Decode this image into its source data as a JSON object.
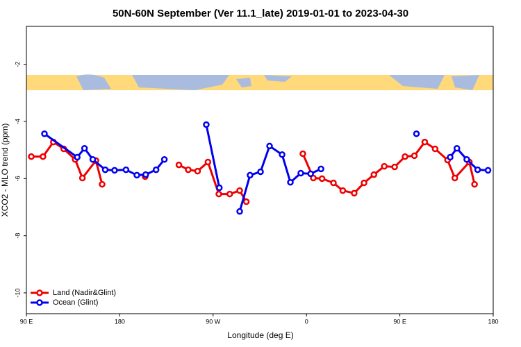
{
  "chart_data": {
    "type": "line",
    "title": "50N-60N September (Ver 11.1_late)   2019-01-01 to 2023-04-30",
    "x_label": "Longitude (deg E)",
    "y_label": "XCO2 - MLO trend (ppm)",
    "xlim": [
      90,
      540
    ],
    "ylim": [
      -10.73,
      -0.67
    ],
    "xticks": [
      {
        "value": 90,
        "label": "90 E"
      },
      {
        "value": 180,
        "label": "180"
      },
      {
        "value": 270,
        "label": "90 W"
      },
      {
        "value": 360,
        "label": "0"
      },
      {
        "value": 450,
        "label": "90 E"
      },
      {
        "value": 540,
        "label": "180"
      }
    ],
    "yticks": [
      -2,
      -4,
      -6,
      -8,
      -10
    ],
    "legend": "bottom-left",
    "series": [
      {
        "name": "Land (Nadir&Glint)",
        "color": "#ee0000",
        "x": [
          94.7,
          106,
          116,
          126,
          137,
          144,
          157,
          163,
          null,
          204.5,
          null,
          237,
          246,
          255,
          265,
          275.5,
          286,
          295.6,
          302,
          null,
          356.5,
          366.6,
          375,
          386,
          395,
          406,
          415.5,
          425,
          435,
          445,
          455,
          464,
          474,
          484,
          496,
          503,
          517,
          522
        ],
        "values": [
          -5.23,
          -5.23,
          -4.72,
          -4.96,
          -5.33,
          -5.98,
          -5.37,
          -6.2,
          null,
          -5.93,
          null,
          -5.52,
          -5.69,
          -5.74,
          -5.42,
          -6.54,
          -6.54,
          -6.42,
          -6.81,
          null,
          -5.13,
          -5.98,
          -6.0,
          -6.15,
          -6.42,
          -6.51,
          -6.15,
          -5.86,
          -5.57,
          -5.59,
          -5.23,
          -5.2,
          -4.72,
          -4.96,
          -5.35,
          -5.98,
          -5.42,
          -6.2
        ]
      },
      {
        "name": "Ocean (Glint)",
        "color": "#0000ee",
        "x": [
          107.4,
          139,
          146,
          154,
          166,
          175,
          186,
          196.5,
          205,
          215,
          223,
          null,
          263.4,
          276,
          null,
          295.6,
          305.6,
          315.7,
          324.4,
          336.5,
          344.5,
          354.5,
          364,
          374,
          null,
          466,
          null,
          498.5,
          505,
          514.5,
          525,
          535
        ],
        "values": [
          -4.43,
          -5.25,
          -4.94,
          -5.33,
          -5.69,
          -5.71,
          -5.69,
          -5.88,
          -5.86,
          -5.69,
          -5.33,
          null,
          -4.11,
          -6.32,
          null,
          -7.15,
          -5.88,
          -5.76,
          -4.86,
          -5.16,
          -6.13,
          -5.81,
          -5.83,
          -5.66,
          null,
          -4.43,
          null,
          -5.25,
          -4.94,
          -5.33,
          -5.69,
          -5.71
        ]
      }
    ]
  }
}
